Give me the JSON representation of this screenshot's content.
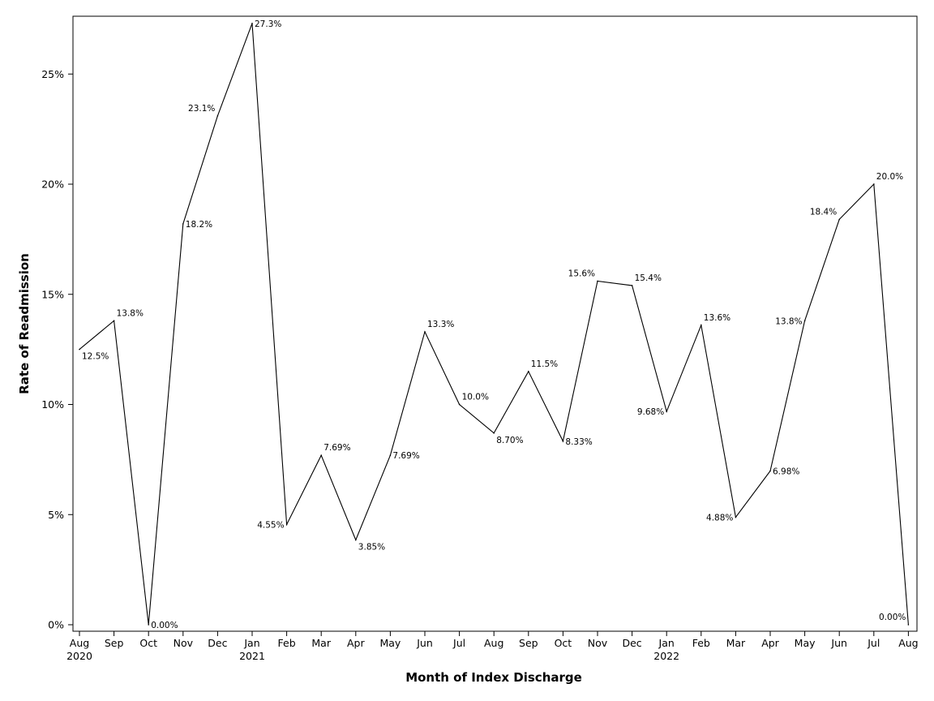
{
  "chart_data": {
    "type": "line",
    "title": "",
    "xlabel": "Month of Index Discharge",
    "ylabel": "Rate of Readmission",
    "ylim": [
      0,
      27.3
    ],
    "yticks": [
      0,
      5,
      10,
      15,
      20,
      25
    ],
    "ytick_labels": [
      "0%",
      "5%",
      "10%",
      "15%",
      "20%",
      "25%"
    ],
    "grid": false,
    "legend": "none",
    "categories": [
      {
        "month": "Aug",
        "year": "2020"
      },
      {
        "month": "Sep",
        "year": ""
      },
      {
        "month": "Oct",
        "year": ""
      },
      {
        "month": "Nov",
        "year": ""
      },
      {
        "month": "Dec",
        "year": ""
      },
      {
        "month": "Jan",
        "year": "2021"
      },
      {
        "month": "Feb",
        "year": ""
      },
      {
        "month": "Mar",
        "year": ""
      },
      {
        "month": "Apr",
        "year": ""
      },
      {
        "month": "May",
        "year": ""
      },
      {
        "month": "Jun",
        "year": ""
      },
      {
        "month": "Jul",
        "year": ""
      },
      {
        "month": "Aug",
        "year": ""
      },
      {
        "month": "Sep",
        "year": ""
      },
      {
        "month": "Oct",
        "year": ""
      },
      {
        "month": "Nov",
        "year": ""
      },
      {
        "month": "Dec",
        "year": ""
      },
      {
        "month": "Jan",
        "year": "2022"
      },
      {
        "month": "Feb",
        "year": ""
      },
      {
        "month": "Mar",
        "year": ""
      },
      {
        "month": "Apr",
        "year": ""
      },
      {
        "month": "May",
        "year": ""
      },
      {
        "month": "Jun",
        "year": ""
      },
      {
        "month": "Jul",
        "year": ""
      },
      {
        "month": "Aug",
        "year": ""
      }
    ],
    "series": [
      {
        "values": [
          12.5,
          13.8,
          0.0,
          18.2,
          23.1,
          27.3,
          4.55,
          7.69,
          3.85,
          7.69,
          13.3,
          10.0,
          8.7,
          11.5,
          8.33,
          15.6,
          15.4,
          9.68,
          13.6,
          4.88,
          6.98,
          13.8,
          18.4,
          20.0,
          0.0
        ],
        "labels": [
          "12.5%",
          "13.8%",
          "0.00%",
          "18.2%",
          "23.1%",
          "27.3%",
          "4.55%",
          "7.69%",
          "3.85%",
          "7.69%",
          "13.3%",
          "10.0%",
          "8.70%",
          "11.5%",
          "8.33%",
          "15.6%",
          "15.4%",
          "9.68%",
          "13.6%",
          "4.88%",
          "6.98%",
          "13.8%",
          "18.4%",
          "20.0%",
          "0.00%"
        ],
        "label_positions": [
          "below-right",
          "above-right",
          "right",
          "right",
          "above-left",
          "right",
          "left",
          "above-right",
          "below-right",
          "right",
          "above-right",
          "above-right",
          "below-right",
          "above-right",
          "right",
          "above-left",
          "above-right",
          "left",
          "above-right",
          "left",
          "right",
          "left",
          "above-left",
          "above-right",
          "above-left"
        ]
      }
    ],
    "color": "#000000"
  }
}
